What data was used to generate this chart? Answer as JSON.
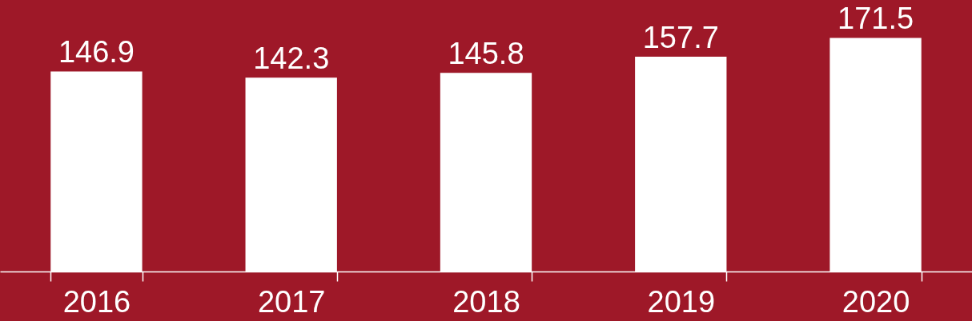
{
  "chart_data": {
    "type": "bar",
    "categories": [
      "2016",
      "2017",
      "2018",
      "2019",
      "2020"
    ],
    "values": [
      146.9,
      142.3,
      145.8,
      157.7,
      171.5
    ],
    "color": "#ffffff",
    "data_labels": true,
    "grid": false
  }
}
